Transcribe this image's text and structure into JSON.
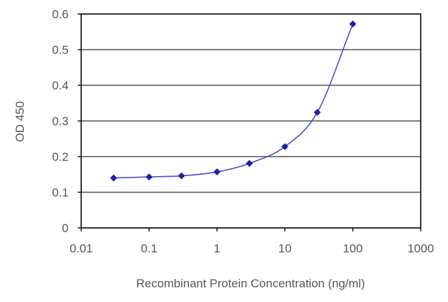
{
  "chart_data": {
    "type": "scatter",
    "title": "",
    "xlabel": "Recombinant Protein Concentration (ng/ml)",
    "ylabel": "OD 450",
    "x_scale": "log",
    "xlim": [
      0.01,
      1000
    ],
    "ylim": [
      0,
      0.6
    ],
    "x_ticks": [
      "0.01",
      "0.1",
      "1",
      "10",
      "100",
      "1000"
    ],
    "y_ticks": [
      "0",
      "0.1",
      "0.2",
      "0.3",
      "0.4",
      "0.5",
      "0.6"
    ],
    "grid": "horizontal",
    "legend": "none",
    "series": [
      {
        "x": [
          0.03,
          0.1,
          0.3,
          1,
          3,
          10,
          30,
          100
        ],
        "y": [
          0.14,
          0.143,
          0.146,
          0.157,
          0.181,
          0.228,
          0.324,
          0.572
        ],
        "fit_curve": true,
        "color": "#1f1f9f"
      }
    ],
    "colors": {
      "line": "#4a4ad0",
      "marker": "#1f1f9f",
      "grid": "#555555",
      "frame": "#000000"
    }
  }
}
